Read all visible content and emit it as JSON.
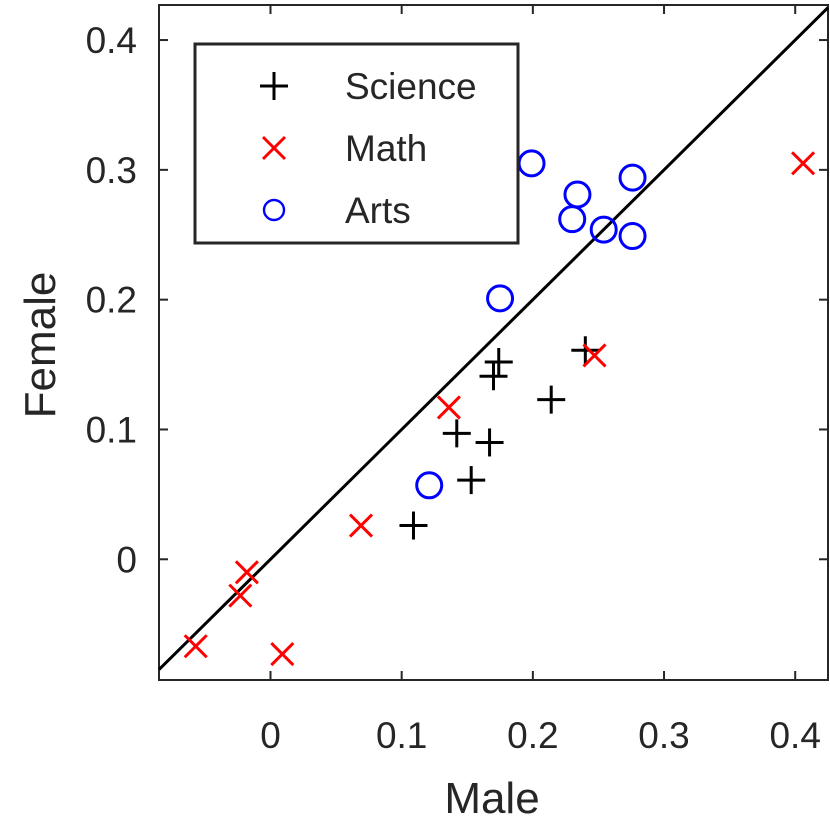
{
  "chart_data": {
    "type": "scatter",
    "title": "",
    "xlabel": "Male",
    "ylabel": "Female",
    "xlim": [
      -0.085,
      0.425
    ],
    "ylim": [
      -0.093,
      0.427
    ],
    "xticks": [
      0,
      0.1,
      0.2,
      0.3,
      0.4
    ],
    "xtick_labels": [
      "0",
      "0.1",
      "0.2",
      "0.3",
      "0.4"
    ],
    "yticks": [
      0,
      0.1,
      0.2,
      0.3,
      0.4
    ],
    "ytick_labels": [
      "0",
      "0.1",
      "0.2",
      "0.3",
      "0.4"
    ],
    "grid": false,
    "legend_position": "top-left",
    "reference_line": {
      "name": "y = x",
      "color": "#000000"
    },
    "series": [
      {
        "name": "Science",
        "marker": "plus",
        "color": "#000000",
        "points": [
          {
            "x": 0.109,
            "y": 0.026
          },
          {
            "x": 0.142,
            "y": 0.097
          },
          {
            "x": 0.153,
            "y": 0.061
          },
          {
            "x": 0.167,
            "y": 0.09
          },
          {
            "x": 0.17,
            "y": 0.141
          },
          {
            "x": 0.174,
            "y": 0.152
          },
          {
            "x": 0.214,
            "y": 0.123
          },
          {
            "x": 0.24,
            "y": 0.161
          }
        ]
      },
      {
        "name": "Math",
        "marker": "x",
        "color": "#ff0000",
        "points": [
          {
            "x": -0.057,
            "y": -0.067
          },
          {
            "x": -0.023,
            "y": -0.028
          },
          {
            "x": -0.018,
            "y": -0.01
          },
          {
            "x": 0.009,
            "y": -0.073
          },
          {
            "x": 0.069,
            "y": 0.026
          },
          {
            "x": 0.136,
            "y": 0.117
          },
          {
            "x": 0.247,
            "y": 0.157
          },
          {
            "x": 0.406,
            "y": 0.305
          }
        ]
      },
      {
        "name": "Arts",
        "marker": "circle",
        "color": "#0000ff",
        "points": [
          {
            "x": 0.121,
            "y": 0.057
          },
          {
            "x": 0.175,
            "y": 0.201
          },
          {
            "x": 0.199,
            "y": 0.305
          },
          {
            "x": 0.23,
            "y": 0.262
          },
          {
            "x": 0.234,
            "y": 0.281
          },
          {
            "x": 0.254,
            "y": 0.254
          },
          {
            "x": 0.276,
            "y": 0.294
          },
          {
            "x": 0.276,
            "y": 0.249
          }
        ]
      }
    ]
  }
}
